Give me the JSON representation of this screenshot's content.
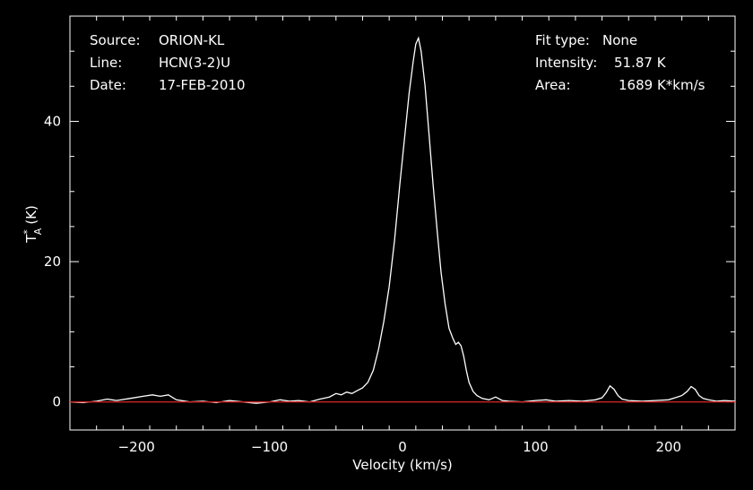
{
  "chart_data": {
    "type": "line",
    "xlabel": "Velocity (km/s)",
    "ylabel": {
      "base": "T",
      "sup": "*",
      "sub": "A",
      "unit": "(K)"
    },
    "xlim": [
      -250,
      250
    ],
    "ylim": [
      -4,
      55
    ],
    "x_ticks": [
      -200,
      -100,
      0,
      100,
      200
    ],
    "y_ticks": [
      0,
      20,
      40
    ],
    "grid": false,
    "annotations": {
      "source_label": "Source:",
      "source_value": "ORION-KL",
      "line_label": "Line:",
      "line_value": "HCN(3-2)U",
      "date_label": "Date:",
      "date_value": "17-FEB-2010",
      "fit_label": "Fit type:",
      "fit_value": "None",
      "intensity_label": "Intensity:",
      "intensity_value": "51.87 K",
      "area_label": "Area:",
      "area_value": "1689 K*km/s"
    },
    "series": [
      {
        "color": "#ffffff",
        "x": [
          -250,
          -240,
          -230,
          -222,
          -215,
          -205,
          -195,
          -188,
          -182,
          -176,
          -170,
          -160,
          -150,
          -140,
          -130,
          -120,
          -110,
          -100,
          -92,
          -85,
          -78,
          -70,
          -62,
          -55,
          -50,
          -46,
          -42,
          -38,
          -34,
          -30,
          -26,
          -22,
          -18,
          -14,
          -10,
          -6,
          -2,
          2,
          5,
          8,
          10,
          12,
          14,
          17,
          20,
          23,
          26,
          29,
          32,
          35,
          38,
          40,
          42,
          44,
          46,
          48,
          50,
          53,
          56,
          60,
          65,
          70,
          75,
          80,
          90,
          100,
          108,
          115,
          125,
          135,
          145,
          150,
          153,
          156,
          159,
          162,
          165,
          170,
          180,
          190,
          200,
          205,
          210,
          214,
          217,
          220,
          223,
          226,
          230,
          236,
          242,
          250
        ],
        "y": [
          0,
          -0.1,
          0.1,
          0.4,
          0.2,
          0.5,
          0.8,
          1.0,
          0.8,
          1.0,
          0.3,
          0.0,
          0.1,
          -0.1,
          0.2,
          0.0,
          -0.2,
          0.0,
          0.3,
          0.1,
          0.2,
          0.0,
          0.4,
          0.7,
          1.2,
          1.0,
          1.4,
          1.2,
          1.6,
          2.0,
          2.8,
          4.5,
          7.5,
          11.5,
          16.5,
          23.0,
          31.0,
          38.5,
          44.0,
          48.5,
          51.0,
          51.87,
          50.0,
          45.0,
          38.0,
          31.0,
          24.5,
          18.5,
          14.0,
          10.5,
          9.0,
          8.2,
          8.5,
          8.0,
          6.5,
          4.5,
          2.8,
          1.5,
          0.9,
          0.5,
          0.3,
          0.7,
          0.2,
          0.1,
          0.0,
          0.2,
          0.3,
          0.1,
          0.2,
          0.1,
          0.3,
          0.6,
          1.3,
          2.3,
          1.8,
          0.9,
          0.4,
          0.2,
          0.1,
          0.2,
          0.3,
          0.6,
          0.9,
          1.5,
          2.2,
          1.8,
          0.9,
          0.5,
          0.3,
          0.1,
          0.2,
          0.1
        ]
      },
      {
        "color": "#cc2222",
        "x": [
          -250,
          250
        ],
        "y": [
          0,
          0
        ]
      }
    ]
  }
}
